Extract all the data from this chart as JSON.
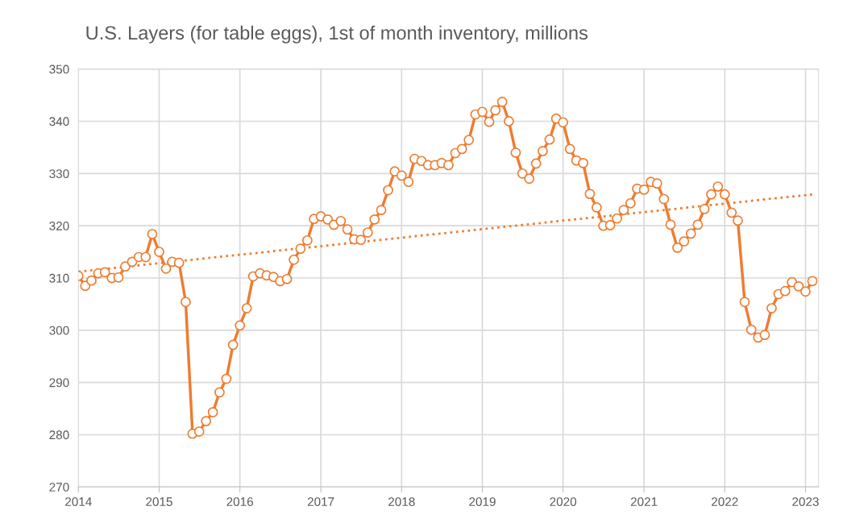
{
  "chart_data": {
    "type": "line",
    "title": "U.S. Layers (for table eggs), 1st of month inventory, millions",
    "x": [
      "2014-01",
      "2014-02",
      "2014-03",
      "2014-04",
      "2014-05",
      "2014-06",
      "2014-07",
      "2014-08",
      "2014-09",
      "2014-10",
      "2014-11",
      "2014-12",
      "2015-01",
      "2015-02",
      "2015-03",
      "2015-04",
      "2015-05",
      "2015-06",
      "2015-07",
      "2015-08",
      "2015-09",
      "2015-10",
      "2015-11",
      "2015-12",
      "2016-01",
      "2016-02",
      "2016-03",
      "2016-04",
      "2016-05",
      "2016-06",
      "2016-07",
      "2016-08",
      "2016-09",
      "2016-10",
      "2016-11",
      "2016-12",
      "2017-01",
      "2017-02",
      "2017-03",
      "2017-04",
      "2017-05",
      "2017-06",
      "2017-07",
      "2017-08",
      "2017-09",
      "2017-10",
      "2017-11",
      "2017-12",
      "2018-01",
      "2018-02",
      "2018-03",
      "2018-04",
      "2018-05",
      "2018-06",
      "2018-07",
      "2018-08",
      "2018-09",
      "2018-10",
      "2018-11",
      "2018-12",
      "2019-01",
      "2019-02",
      "2019-03",
      "2019-04",
      "2019-05",
      "2019-06",
      "2019-07",
      "2019-08",
      "2019-09",
      "2019-10",
      "2019-11",
      "2019-12",
      "2020-01",
      "2020-02",
      "2020-03",
      "2020-04",
      "2020-05",
      "2020-06",
      "2020-07",
      "2020-08",
      "2020-09",
      "2020-10",
      "2020-11",
      "2020-12",
      "2021-01",
      "2021-02",
      "2021-03",
      "2021-04",
      "2021-05",
      "2021-06",
      "2021-07",
      "2021-08",
      "2021-09",
      "2021-10",
      "2021-11",
      "2021-12",
      "2022-01",
      "2022-02",
      "2022-03",
      "2022-04",
      "2022-05",
      "2022-06",
      "2022-07",
      "2022-08",
      "2022-09",
      "2022-10",
      "2022-11",
      "2022-12",
      "2023-01",
      "2023-02"
    ],
    "series": [
      {
        "color": "#ed7d31",
        "marker": "circle",
        "line_style": "solid",
        "values": [
          310.4,
          308.5,
          309.5,
          310.9,
          311.1,
          310.0,
          310.1,
          312.2,
          313.1,
          314.0,
          314.0,
          318.4,
          315.0,
          311.8,
          313.1,
          312.9,
          305.4,
          280.2,
          280.6,
          282.6,
          284.3,
          288.1,
          290.7,
          297.2,
          300.9,
          304.2,
          310.3,
          310.9,
          310.5,
          310.2,
          309.4,
          309.8,
          313.5,
          315.6,
          317.2,
          321.3,
          321.8,
          321.2,
          320.2,
          320.9,
          319.3,
          317.4,
          317.3,
          318.7,
          321.2,
          323.0,
          326.8,
          330.4,
          329.6,
          328.4,
          332.8,
          332.4,
          331.6,
          331.6,
          332.0,
          331.6,
          333.9,
          334.7,
          336.4,
          341.3,
          341.8,
          339.9,
          342.1,
          343.7,
          340.0,
          334.0,
          330.0,
          329.0,
          331.9,
          334.3,
          336.5,
          340.5,
          339.8,
          334.7,
          332.5,
          332.0,
          326.1,
          323.5,
          320.0,
          320.1,
          321.4,
          323.0,
          324.3,
          327.1,
          326.9,
          328.4,
          328.1,
          325.1,
          320.2,
          315.8,
          317.0,
          318.5,
          320.2,
          323.2,
          326.0,
          327.5,
          326.0,
          322.5,
          321.0,
          305.4,
          300.1,
          298.6,
          299.1,
          304.2,
          306.9,
          307.5,
          309.2,
          308.4,
          307.4,
          309.4
        ]
      },
      {
        "type": "line",
        "color": "#ed7d31",
        "marker": "none",
        "line_style": "dotted",
        "x": [
          "2014-01",
          "2023-02"
        ],
        "values": [
          311.2,
          326.0
        ]
      }
    ],
    "xlim": [
      "2014-01",
      "2023-03"
    ],
    "xticks": [
      {
        "value": "2014",
        "label": "2014"
      },
      {
        "value": "2015",
        "label": "2015"
      },
      {
        "value": "2016",
        "label": "2016"
      },
      {
        "value": "2017",
        "label": "2017"
      },
      {
        "value": "2018",
        "label": "2018"
      },
      {
        "value": "2019",
        "label": "2019"
      },
      {
        "value": "2020",
        "label": "2020"
      },
      {
        "value": "2021",
        "label": "2021"
      },
      {
        "value": "2022",
        "label": "2022"
      },
      {
        "value": "2023",
        "label": "2023"
      }
    ],
    "ylim": [
      270,
      350
    ],
    "yticks": [
      270,
      280,
      290,
      300,
      310,
      320,
      330,
      340,
      350
    ],
    "grid": true
  }
}
